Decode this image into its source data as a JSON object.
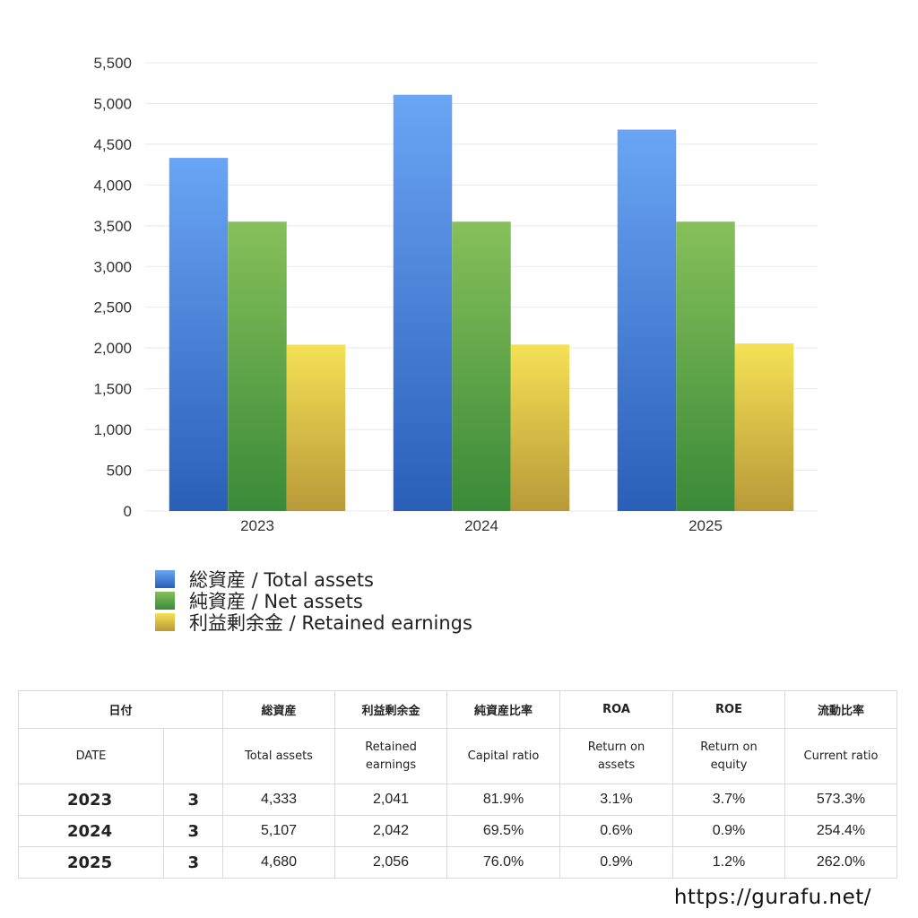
{
  "chart_data": {
    "type": "bar",
    "categories": [
      "2023",
      "2024",
      "2025"
    ],
    "series": [
      {
        "name": "総資産 / Total assets",
        "values": [
          4333,
          5107,
          4680
        ]
      },
      {
        "name": "純資産 / Net assets",
        "values": [
          3550,
          3550,
          3550
        ]
      },
      {
        "name": "利益剰余金 / Retained earnings",
        "values": [
          2041,
          2042,
          2056
        ]
      }
    ],
    "ylim": [
      0,
      5500
    ],
    "yticks": [
      0,
      500,
      1000,
      1500,
      2000,
      2500,
      3000,
      3500,
      4000,
      4500,
      5000,
      5500
    ],
    "ytick_labels": [
      "0",
      "500",
      "1,000",
      "1,500",
      "2,000",
      "2,500",
      "3,000",
      "3,500",
      "4,000",
      "4,500",
      "5,000",
      "5,500"
    ],
    "grid": true,
    "legend_position": "bottom-left",
    "colors": {
      "total_assets": [
        "#6aa5f5",
        "#2a5fb8"
      ],
      "net_assets": [
        "#86c05a",
        "#3a8a38"
      ],
      "retained_earnings": [
        "#f5e155",
        "#b79a38"
      ]
    }
  },
  "legend": {
    "items": [
      {
        "label": "総資産 / Total assets"
      },
      {
        "label": "純資産 / Net assets"
      },
      {
        "label": "利益剰余金 / Retained earnings"
      }
    ]
  },
  "table": {
    "header_jp": {
      "date": "日付",
      "total_assets": "総資産",
      "retained_earnings": "利益剰余金",
      "capital_ratio": "純資産比率",
      "roa": "ROA",
      "roe": "ROE",
      "current_ratio": "流動比率"
    },
    "header_en": {
      "date": "DATE",
      "total_assets": "Total assets",
      "retained_earnings_1": "Retained",
      "retained_earnings_2": "earnings",
      "capital_ratio": "Capital ratio",
      "roa_1": "Return on",
      "roa_2": "assets",
      "roe_1": "Return on",
      "roe_2": "equity",
      "current_ratio": "Current ratio"
    },
    "rows": [
      {
        "year": "2023",
        "month": "3",
        "total_assets": "4,333",
        "retained_earnings": "2,041",
        "capital_ratio": "81.9%",
        "roa": "3.1%",
        "roe": "3.7%",
        "current_ratio": "573.3%"
      },
      {
        "year": "2024",
        "month": "3",
        "total_assets": "5,107",
        "retained_earnings": "2,042",
        "capital_ratio": "69.5%",
        "roa": "0.6%",
        "roe": "0.9%",
        "current_ratio": "254.4%"
      },
      {
        "year": "2025",
        "month": "3",
        "total_assets": "4,680",
        "retained_earnings": "2,056",
        "capital_ratio": "76.0%",
        "roa": "0.9%",
        "roe": "1.2%",
        "current_ratio": "262.0%"
      }
    ]
  },
  "footer": {
    "url": "https://gurafu.net/"
  }
}
